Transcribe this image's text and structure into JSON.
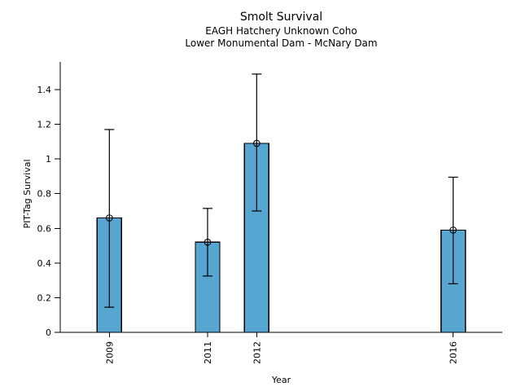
{
  "chart_data": {
    "type": "bar",
    "title": "Smolt Survival",
    "subtitle1": "EAGH Hatchery Unknown Coho",
    "subtitle2": "Lower Monumental Dam - McNary Dam",
    "xlabel": "Year",
    "ylabel": "PIT-Tag Survival",
    "categories": [
      2009,
      2011,
      2012,
      2016
    ],
    "values": [
      0.66,
      0.52,
      1.09,
      0.59
    ],
    "error_low": [
      0.145,
      0.325,
      0.7,
      0.28
    ],
    "error_high": [
      1.17,
      0.715,
      1.49,
      0.895
    ],
    "y_tick_values": [
      0,
      0.2,
      0.4,
      0.6,
      0.8,
      1.0,
      1.2,
      1.4
    ],
    "y_tick_labels": [
      "0",
      "0.2",
      "0.4",
      "0.6",
      "0.8",
      "1",
      "1.2",
      "1.4"
    ],
    "ylim": [
      0,
      1.56
    ],
    "xlim": [
      2008,
      2017
    ],
    "grid": false,
    "legend": "none",
    "marker": "open-circle",
    "bar_color": "#57a5d1",
    "bar_edge_color": "#000000",
    "error_color": "#000000",
    "axis_color": "#000000"
  }
}
